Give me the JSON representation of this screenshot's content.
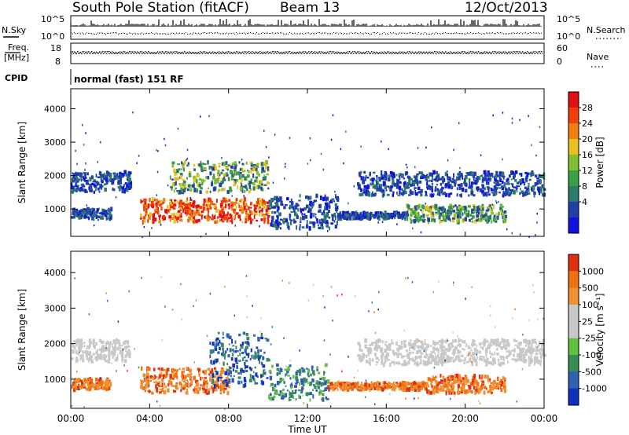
{
  "header": {
    "station": "South Pole Station (fitACF)",
    "beam": "Beam 13",
    "date": "12/Oct/2013"
  },
  "strip": {
    "nsky_label": "N.Sky",
    "nsearch_label": "N.Search",
    "nsky_ticks": [
      "10^5",
      "10^0"
    ],
    "nsearch_ticks": [
      "10^5",
      "10^0"
    ],
    "freq_label_1": "Freq.",
    "freq_label_2": "[MHz]",
    "freq_ticks": [
      "18",
      "8"
    ],
    "nave_label": "Nave",
    "nave_ticks": [
      "60",
      "0"
    ],
    "cpid_label": "CPID",
    "cpid_value": "normal (fast) 151 RF"
  },
  "chart_data": [
    {
      "type": "heatmap",
      "name": "power",
      "ylabel": "Slant Range [km]",
      "yticks": [
        1000,
        2000,
        3000,
        4000
      ],
      "ylim": [
        180,
        4600
      ],
      "xlim_hours": [
        0,
        24
      ],
      "colorbar": {
        "label": "Power [dB]",
        "ticks": [
          "28",
          "24",
          "20",
          "16",
          "12",
          "8",
          "4"
        ],
        "colors": [
          "#1010e0",
          "#2040a8",
          "#2e7a6a",
          "#3aa048",
          "#80c030",
          "#e8c020",
          "#f08010",
          "#f04008",
          "#e01010"
        ]
      },
      "regions": [
        {
          "from": "00:00",
          "to": "03:00",
          "range_km": [
            1500,
            2100
          ],
          "level": "low"
        },
        {
          "from": "00:00",
          "to": "02:00",
          "range_km": [
            700,
            1000
          ],
          "level": "low"
        },
        {
          "from": "03:30",
          "to": "10:00",
          "range_km": [
            600,
            1300
          ],
          "level": "high"
        },
        {
          "from": "05:00",
          "to": "10:00",
          "range_km": [
            1500,
            2400
          ],
          "level": "mid"
        },
        {
          "from": "10:00",
          "to": "13:30",
          "range_km": [
            400,
            1400
          ],
          "level": "low"
        },
        {
          "from": "13:30",
          "to": "17:00",
          "range_km": [
            700,
            900
          ],
          "level": "low"
        },
        {
          "from": "14:30",
          "to": "23:59",
          "range_km": [
            1400,
            2100
          ],
          "level": "low"
        },
        {
          "from": "17:00",
          "to": "22:00",
          "range_km": [
            600,
            1100
          ],
          "level": "mid"
        }
      ]
    },
    {
      "type": "heatmap",
      "name": "velocity",
      "ylabel": "Slant Range [km]",
      "yticks": [
        1000,
        2000,
        3000,
        4000
      ],
      "ylim": [
        180,
        4600
      ],
      "xlim_hours": [
        0,
        24
      ],
      "xticks": [
        "00:00",
        "04:00",
        "08:00",
        "12:00",
        "16:00",
        "20:00",
        "00:00"
      ],
      "xlabel": "Time UT",
      "colorbar": {
        "label": "Velocity [m s⁻¹]",
        "ticks": [
          "1000",
          "500",
          "100",
          "25",
          "-25",
          "-100",
          "-500",
          "-1000"
        ],
        "colors": [
          "#1030c0",
          "#3060b0",
          "#3a8a58",
          "#60c040",
          "#c8c8c8",
          "#c8c8c8",
          "#f09030",
          "#f07010",
          "#e03010"
        ]
      },
      "regions": [
        {
          "from": "00:00",
          "to": "03:00",
          "range_km": [
            1500,
            2100
          ],
          "level": "grey"
        },
        {
          "from": "00:00",
          "to": "02:00",
          "range_km": [
            700,
            1000
          ],
          "level": "orange"
        },
        {
          "from": "03:30",
          "to": "08:00",
          "range_km": [
            600,
            1300
          ],
          "level": "orange"
        },
        {
          "from": "07:00",
          "to": "10:00",
          "range_km": [
            800,
            2300
          ],
          "level": "blue"
        },
        {
          "from": "10:00",
          "to": "13:00",
          "range_km": [
            400,
            1400
          ],
          "level": "green"
        },
        {
          "from": "13:00",
          "to": "18:00",
          "range_km": [
            700,
            900
          ],
          "level": "orange"
        },
        {
          "from": "14:30",
          "to": "23:59",
          "range_km": [
            1400,
            2100
          ],
          "level": "grey"
        },
        {
          "from": "18:00",
          "to": "22:00",
          "range_km": [
            600,
            1100
          ],
          "level": "orange"
        }
      ]
    }
  ]
}
